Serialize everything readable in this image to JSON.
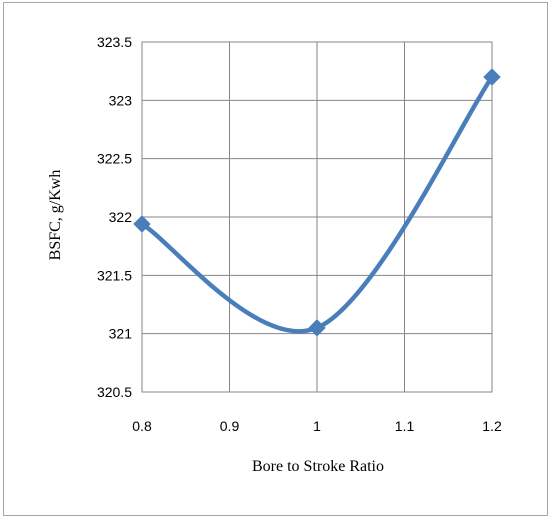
{
  "chart_data": {
    "type": "line",
    "title": "",
    "xlabel": "Bore to Stroke Ratio",
    "ylabel": "BSFC, g/Kwh",
    "xlim": [
      0.8,
      1.2
    ],
    "ylim": [
      320.5,
      323.5
    ],
    "x_ticks": [
      "0.8",
      "0.9",
      "1",
      "1.1",
      "1.2"
    ],
    "y_ticks": [
      "323.5",
      "323",
      "322.5",
      "322",
      "321.5",
      "321",
      "320.5"
    ],
    "grid": true,
    "smoothed": true,
    "marker": "diamond",
    "series_color": "#4a7ebb",
    "series": [
      {
        "x": [
          0.8,
          1.0,
          1.2
        ],
        "values": [
          321.94,
          321.05,
          323.2
        ]
      }
    ]
  }
}
